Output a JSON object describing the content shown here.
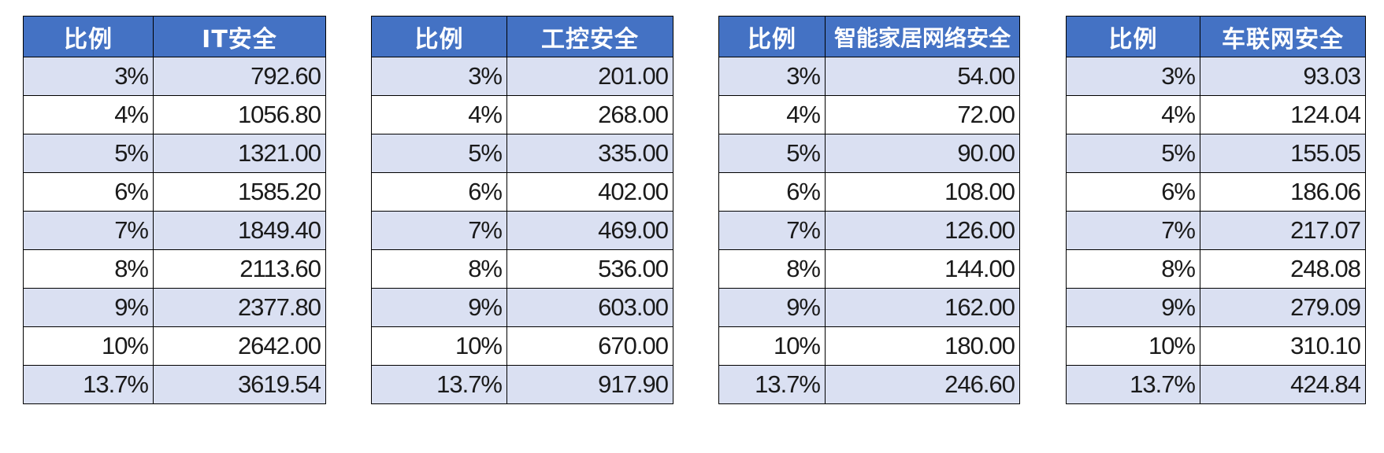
{
  "tables": [
    {
      "header_ratio": "比例",
      "header_value": "IT安全",
      "rows": [
        {
          "ratio": "3%",
          "value": "792.60"
        },
        {
          "ratio": "4%",
          "value": "1056.80"
        },
        {
          "ratio": "5%",
          "value": "1321.00"
        },
        {
          "ratio": "6%",
          "value": "1585.20"
        },
        {
          "ratio": "7%",
          "value": "1849.40"
        },
        {
          "ratio": "8%",
          "value": "2113.60"
        },
        {
          "ratio": "9%",
          "value": "2377.80"
        },
        {
          "ratio": "10%",
          "value": "2642.00"
        },
        {
          "ratio": "13.7%",
          "value": "3619.54"
        }
      ]
    },
    {
      "header_ratio": "比例",
      "header_value": "工控安全",
      "rows": [
        {
          "ratio": "3%",
          "value": "201.00"
        },
        {
          "ratio": "4%",
          "value": "268.00"
        },
        {
          "ratio": "5%",
          "value": "335.00"
        },
        {
          "ratio": "6%",
          "value": "402.00"
        },
        {
          "ratio": "7%",
          "value": "469.00"
        },
        {
          "ratio": "8%",
          "value": "536.00"
        },
        {
          "ratio": "9%",
          "value": "603.00"
        },
        {
          "ratio": "10%",
          "value": "670.00"
        },
        {
          "ratio": "13.7%",
          "value": "917.90"
        }
      ]
    },
    {
      "header_ratio": "比例",
      "header_value": "智能家居网络安全",
      "rows": [
        {
          "ratio": "3%",
          "value": "54.00"
        },
        {
          "ratio": "4%",
          "value": "72.00"
        },
        {
          "ratio": "5%",
          "value": "90.00"
        },
        {
          "ratio": "6%",
          "value": "108.00"
        },
        {
          "ratio": "7%",
          "value": "126.00"
        },
        {
          "ratio": "8%",
          "value": "144.00"
        },
        {
          "ratio": "9%",
          "value": "162.00"
        },
        {
          "ratio": "10%",
          "value": "180.00"
        },
        {
          "ratio": "13.7%",
          "value": "246.60"
        }
      ]
    },
    {
      "header_ratio": "比例",
      "header_value": "车联网安全",
      "rows": [
        {
          "ratio": "3%",
          "value": "93.03"
        },
        {
          "ratio": "4%",
          "value": "124.04"
        },
        {
          "ratio": "5%",
          "value": "155.05"
        },
        {
          "ratio": "6%",
          "value": "186.06"
        },
        {
          "ratio": "7%",
          "value": "217.07"
        },
        {
          "ratio": "8%",
          "value": "248.08"
        },
        {
          "ratio": "9%",
          "value": "279.09"
        },
        {
          "ratio": "10%",
          "value": "310.10"
        },
        {
          "ratio": "13.7%",
          "value": "424.84"
        }
      ]
    }
  ],
  "colors": {
    "header_bg": "#4472C4",
    "header_text": "#FFFFFF",
    "row_shade": "#DAE0F2",
    "row_plain": "#FFFFFF",
    "border": "#000000"
  }
}
